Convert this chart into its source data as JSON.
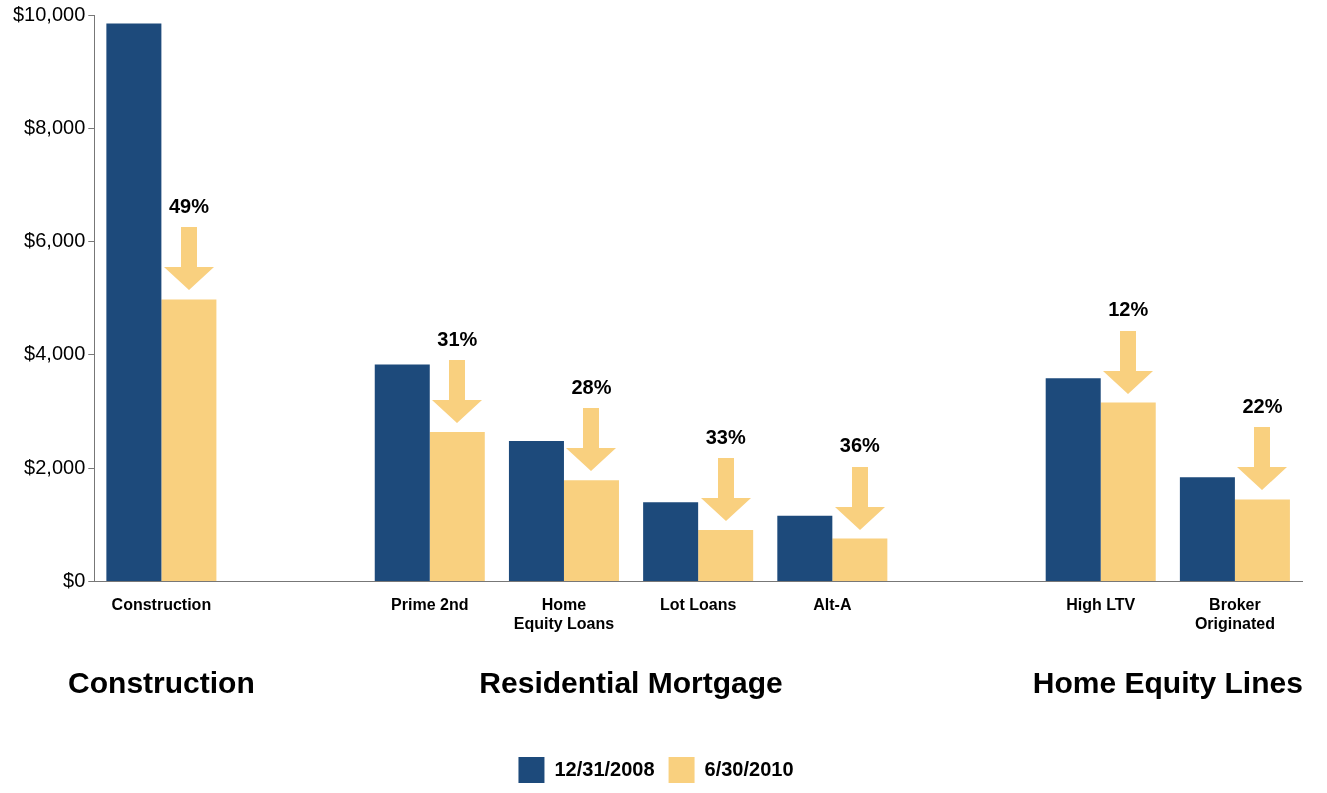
{
  "chart_data": {
    "type": "bar",
    "categories": [
      "Construction",
      null,
      "Prime 2nd",
      "Home Equity Loans",
      "Lot Loans",
      "Alt-A",
      null,
      "High LTV",
      "Broker Originated"
    ],
    "series": [
      {
        "name": "12/31/2008",
        "color": "#1d4a7b",
        "values": [
          9850,
          null,
          3830,
          2480,
          1400,
          1160,
          null,
          3590,
          1840
        ]
      },
      {
        "name": "6/30/2010",
        "color": "#f9d07f",
        "values": [
          4980,
          null,
          2640,
          1790,
          910,
          760,
          null,
          3160,
          1450
        ]
      }
    ],
    "ylim": [
      0,
      10000
    ],
    "yticks": [
      {
        "value": 0,
        "label": "$0"
      },
      {
        "value": 2000,
        "label": "$2,000"
      },
      {
        "value": 4000,
        "label": "$4,000"
      },
      {
        "value": 6000,
        "label": "$6,000"
      },
      {
        "value": 8000,
        "label": "$8,000"
      },
      {
        "value": 10000,
        "label": "$10,000"
      }
    ],
    "grid": false,
    "legend": "bottom",
    "annotations": [
      "49%",
      "31%",
      "28%",
      "33%",
      "36%",
      "12%",
      "22%",
      "Construction",
      "Residential Mortgage",
      "Home Equity Lines"
    ]
  }
}
